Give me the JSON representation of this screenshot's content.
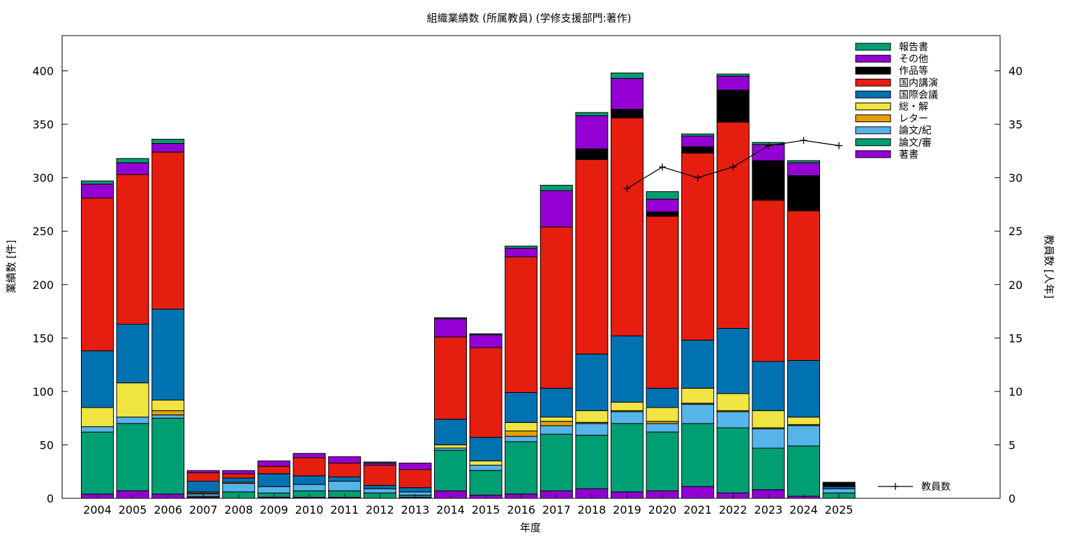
{
  "chart_data": {
    "type": "bar",
    "stacked": true,
    "title": "組織業績数 (所属教員) (学修支援部門:著作)",
    "xlabel": "年度",
    "ylabel": "業績数 [件]",
    "y2label": "教員数 [人年]",
    "ylim": [
      0,
      433
    ],
    "y2lim": [
      0,
      43.3
    ],
    "y_ticks": [
      0,
      50,
      100,
      150,
      200,
      250,
      300,
      350,
      400
    ],
    "y2_ticks": [
      0,
      5,
      10,
      15,
      20,
      25,
      30,
      35,
      40
    ],
    "grid": false,
    "legend_position": "top-right",
    "categories": [
      "2004",
      "2005",
      "2006",
      "2007",
      "2008",
      "2009",
      "2010",
      "2011",
      "2012",
      "2013",
      "2014",
      "2015",
      "2016",
      "2017",
      "2018",
      "2019",
      "2020",
      "2021",
      "2022",
      "2023",
      "2024",
      "2025"
    ],
    "series": [
      {
        "name": "著書",
        "color": "#9400d3",
        "values": [
          4,
          7,
          4,
          1,
          0,
          1,
          1,
          1,
          0,
          1,
          7,
          3,
          4,
          7,
          9,
          6,
          7,
          11,
          5,
          8,
          2,
          0
        ]
      },
      {
        "name": "論文/審",
        "color": "#009e73",
        "values": [
          58,
          63,
          71,
          1,
          6,
          4,
          6,
          6,
          5,
          2,
          38,
          23,
          49,
          53,
          50,
          64,
          55,
          59,
          61,
          39,
          47,
          5
        ]
      },
      {
        "name": "論文/紀",
        "color": "#56b4e9",
        "values": [
          5,
          6,
          3,
          2,
          8,
          6,
          6,
          9,
          4,
          3,
          2,
          5,
          5,
          8,
          11,
          11,
          8,
          18,
          15,
          18,
          19,
          4
        ]
      },
      {
        "name": "レター",
        "color": "#e69f00",
        "values": [
          0,
          0,
          4,
          1,
          1,
          0,
          0,
          0,
          0,
          0,
          0,
          0,
          5,
          4,
          1,
          1,
          2,
          1,
          1,
          1,
          1,
          0
        ]
      },
      {
        "name": "総・解",
        "color": "#f0e442",
        "values": [
          18,
          32,
          10,
          1,
          0,
          0,
          0,
          0,
          0,
          0,
          3,
          4,
          8,
          4,
          11,
          8,
          13,
          14,
          16,
          16,
          7,
          0
        ]
      },
      {
        "name": "国際会議",
        "color": "#0072b2",
        "values": [
          53,
          55,
          85,
          10,
          4,
          12,
          8,
          4,
          3,
          4,
          24,
          22,
          28,
          27,
          53,
          62,
          18,
          45,
          61,
          46,
          53,
          2
        ]
      },
      {
        "name": "国内講演",
        "color": "#e51e10",
        "values": [
          143,
          140,
          147,
          8,
          4,
          7,
          17,
          13,
          19,
          17,
          77,
          84,
          127,
          151,
          182,
          204,
          161,
          175,
          193,
          151,
          140,
          0
        ]
      },
      {
        "name": "作品等",
        "color": "#000000",
        "values": [
          0,
          0,
          0,
          0,
          0,
          0,
          0,
          0,
          0,
          0,
          0,
          0,
          0,
          0,
          10,
          8,
          4,
          6,
          30,
          37,
          33,
          4
        ]
      },
      {
        "name": "その他",
        "color": "#9400d3",
        "values": [
          13,
          11,
          8,
          2,
          3,
          5,
          4,
          6,
          2,
          6,
          17,
          12,
          8,
          34,
          31,
          29,
          12,
          10,
          13,
          15,
          12,
          0
        ]
      },
      {
        "name": "報告書",
        "color": "#009e73",
        "values": [
          3,
          4,
          4,
          0,
          0,
          0,
          0,
          0,
          1,
          0,
          1,
          1,
          2,
          5,
          3,
          5,
          7,
          2,
          2,
          2,
          2,
          0
        ]
      }
    ],
    "line_series": {
      "name": "教員数",
      "axis": "y2",
      "color": "#000000",
      "categories": [
        "2019",
        "2020",
        "2021",
        "2022",
        "2023",
        "2024",
        "2025"
      ],
      "values": [
        29,
        31,
        30,
        31,
        33,
        33.5,
        33
      ]
    }
  }
}
